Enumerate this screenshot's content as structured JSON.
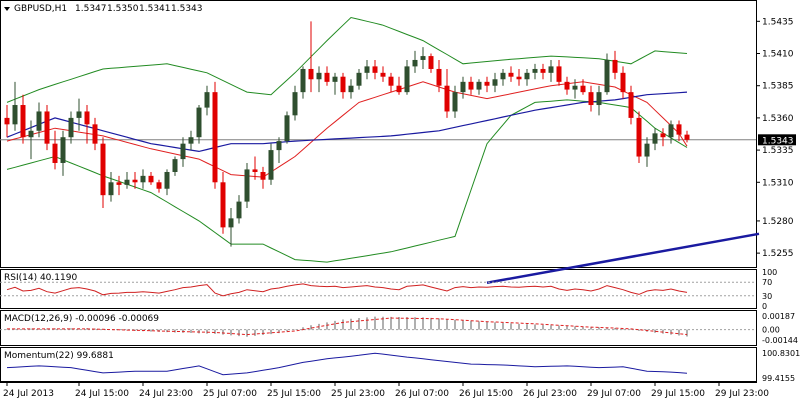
{
  "chart_data": {
    "type": "candlestick",
    "symbol_header": "GBPUSD,H1",
    "ohlc_header": [
      "1.5347",
      "1.5350",
      "1.5341",
      "1.5343"
    ],
    "ohlc": {
      "open": 1.5347,
      "high": 1.535,
      "low": 1.5341,
      "close": 1.5343
    },
    "current_price": 1.5343,
    "current_price_label": "1.5343",
    "price_axis": {
      "range": [
        1.5245,
        1.545
      ],
      "ticks": [
        1.5435,
        1.541,
        1.5385,
        1.536,
        1.5335,
        1.531,
        1.528,
        1.5255
      ],
      "tick_labels": [
        "1.5435",
        "1.5410",
        "1.5385",
        "1.5360",
        "1.5335",
        "1.5310",
        "1.5280",
        "1.5255"
      ]
    },
    "time_axis": {
      "labels": [
        "24 Jul 2013",
        "24 Jul 15:00",
        "24 Jul 23:00",
        "25 Jul 07:00",
        "25 Jul 15:00",
        "25 Jul 23:00",
        "26 Jul 07:00",
        "26 Jul 15:00",
        "26 Jul 23:00",
        "29 Jul 07:00",
        "29 Jul 15:00",
        "29 Jul 23:00"
      ],
      "label_bars": [
        0,
        9,
        17,
        25,
        33,
        41,
        49,
        57,
        65,
        73,
        81,
        89
      ]
    },
    "candles": [
      [
        1.536,
        1.537,
        1.5345,
        1.5355
      ],
      [
        1.5355,
        1.5388,
        1.535,
        1.537
      ],
      [
        1.537,
        1.5378,
        1.534,
        1.5345
      ],
      [
        1.5345,
        1.5358,
        1.5328,
        1.535
      ],
      [
        1.535,
        1.5372,
        1.5345,
        1.5365
      ],
      [
        1.5365,
        1.537,
        1.5335,
        1.534
      ],
      [
        1.534,
        1.535,
        1.532,
        1.5325
      ],
      [
        1.5325,
        1.535,
        1.5315,
        1.5345
      ],
      [
        1.5345,
        1.5365,
        1.534,
        1.536
      ],
      [
        1.536,
        1.5375,
        1.535,
        1.5365
      ],
      [
        1.5365,
        1.537,
        1.534,
        1.5355
      ],
      [
        1.5355,
        1.536,
        1.5335,
        1.534
      ],
      [
        1.534,
        1.5345,
        1.529,
        1.53
      ],
      [
        1.53,
        1.5318,
        1.5295,
        1.531
      ],
      [
        1.531,
        1.5315,
        1.53,
        1.5308
      ],
      [
        1.5308,
        1.5318,
        1.5305,
        1.5312
      ],
      [
        1.5312,
        1.5318,
        1.5305,
        1.531
      ],
      [
        1.531,
        1.532,
        1.5305,
        1.5315
      ],
      [
        1.5315,
        1.5318,
        1.5308,
        1.531
      ],
      [
        1.531,
        1.5312,
        1.5302,
        1.5305
      ],
      [
        1.5305,
        1.532,
        1.53,
        1.5318
      ],
      [
        1.5318,
        1.533,
        1.5315,
        1.5328
      ],
      [
        1.5328,
        1.5345,
        1.5322,
        1.534
      ],
      [
        1.534,
        1.535,
        1.5335,
        1.5345
      ],
      [
        1.5345,
        1.537,
        1.534,
        1.5368
      ],
      [
        1.5368,
        1.5385,
        1.5362,
        1.538
      ],
      [
        1.538,
        1.5388,
        1.5305,
        1.531
      ],
      [
        1.531,
        1.5318,
        1.527,
        1.5275
      ],
      [
        1.5275,
        1.529,
        1.526,
        1.5282
      ],
      [
        1.5282,
        1.53,
        1.5278,
        1.5295
      ],
      [
        1.5295,
        1.5325,
        1.529,
        1.532
      ],
      [
        1.532,
        1.533,
        1.5312,
        1.5318
      ],
      [
        1.5318,
        1.5322,
        1.5305,
        1.5312
      ],
      [
        1.5312,
        1.534,
        1.5308,
        1.5335
      ],
      [
        1.5335,
        1.5345,
        1.5325,
        1.5342
      ],
      [
        1.5342,
        1.5365,
        1.534,
        1.5362
      ],
      [
        1.5362,
        1.5385,
        1.5358,
        1.538
      ],
      [
        1.538,
        1.54,
        1.5375,
        1.5398
      ],
      [
        1.5398,
        1.5435,
        1.538,
        1.539
      ],
      [
        1.539,
        1.54,
        1.538,
        1.5395
      ],
      [
        1.5395,
        1.54,
        1.5385,
        1.5388
      ],
      [
        1.5388,
        1.5395,
        1.5378,
        1.5392
      ],
      [
        1.5392,
        1.5395,
        1.5375,
        1.538
      ],
      [
        1.538,
        1.539,
        1.5375,
        1.5385
      ],
      [
        1.5385,
        1.5398,
        1.5382,
        1.5395
      ],
      [
        1.5395,
        1.5405,
        1.539,
        1.54
      ],
      [
        1.54,
        1.5405,
        1.539,
        1.5395
      ],
      [
        1.5395,
        1.54,
        1.5388,
        1.5392
      ],
      [
        1.5392,
        1.5395,
        1.538,
        1.5385
      ],
      [
        1.5385,
        1.5392,
        1.5378,
        1.538
      ],
      [
        1.538,
        1.5405,
        1.5378,
        1.54
      ],
      [
        1.54,
        1.5412,
        1.5395,
        1.5405
      ],
      [
        1.5405,
        1.5415,
        1.5398,
        1.5408
      ],
      [
        1.5408,
        1.541,
        1.5395,
        1.5398
      ],
      [
        1.5398,
        1.5405,
        1.538,
        1.5385
      ],
      [
        1.5385,
        1.5398,
        1.536,
        1.5365
      ],
      [
        1.5365,
        1.5385,
        1.536,
        1.538
      ],
      [
        1.538,
        1.5392,
        1.5375,
        1.5388
      ],
      [
        1.5388,
        1.5392,
        1.5378,
        1.5382
      ],
      [
        1.5382,
        1.539,
        1.5378,
        1.5388
      ],
      [
        1.5388,
        1.5392,
        1.538,
        1.5385
      ],
      [
        1.5385,
        1.5395,
        1.538,
        1.539
      ],
      [
        1.539,
        1.5398,
        1.5385,
        1.5395
      ],
      [
        1.5395,
        1.54,
        1.5388,
        1.5392
      ],
      [
        1.5392,
        1.5398,
        1.5385,
        1.539
      ],
      [
        1.539,
        1.5398,
        1.5385,
        1.5395
      ],
      [
        1.5395,
        1.5402,
        1.539,
        1.5398
      ],
      [
        1.5398,
        1.5402,
        1.539,
        1.5395
      ],
      [
        1.5395,
        1.5405,
        1.5388,
        1.54
      ],
      [
        1.54,
        1.5405,
        1.5385,
        1.5388
      ],
      [
        1.5388,
        1.5392,
        1.5378,
        1.5382
      ],
      [
        1.5382,
        1.539,
        1.5375,
        1.5385
      ],
      [
        1.5385,
        1.539,
        1.5378,
        1.538
      ],
      [
        1.538,
        1.5385,
        1.5365,
        1.537
      ],
      [
        1.537,
        1.5385,
        1.5362,
        1.538
      ],
      [
        1.538,
        1.541,
        1.5378,
        1.5405
      ],
      [
        1.5405,
        1.5412,
        1.539,
        1.5395
      ],
      [
        1.5395,
        1.54,
        1.5375,
        1.538
      ],
      [
        1.538,
        1.5385,
        1.5355,
        1.536
      ],
      [
        1.536,
        1.5365,
        1.5325,
        1.533
      ],
      [
        1.533,
        1.5345,
        1.5322,
        1.534
      ],
      [
        1.534,
        1.5352,
        1.5335,
        1.5348
      ],
      [
        1.5348,
        1.5352,
        1.5338,
        1.5345
      ],
      [
        1.5345,
        1.5358,
        1.534,
        1.5355
      ],
      [
        1.5355,
        1.5358,
        1.5342,
        1.5347
      ],
      [
        1.5347,
        1.535,
        1.5341,
        1.5343
      ]
    ],
    "bollinger_bands": {
      "upper_anchors": [
        [
          0,
          1.5372
        ],
        [
          4,
          1.5382
        ],
        [
          12,
          1.5398
        ],
        [
          20,
          1.5402
        ],
        [
          25,
          1.5395
        ],
        [
          30,
          1.538
        ],
        [
          33,
          1.5378
        ],
        [
          36,
          1.5395
        ],
        [
          40,
          1.542
        ],
        [
          43,
          1.5438
        ],
        [
          47,
          1.5432
        ],
        [
          52,
          1.542
        ],
        [
          57,
          1.5402
        ],
        [
          62,
          1.5405
        ],
        [
          68,
          1.5408
        ],
        [
          74,
          1.5406
        ],
        [
          78,
          1.5402
        ],
        [
          81,
          1.5412
        ],
        [
          85,
          1.541
        ]
      ],
      "middle_anchors": [
        [
          0,
          1.5342
        ],
        [
          6,
          1.5352
        ],
        [
          12,
          1.5346
        ],
        [
          18,
          1.5336
        ],
        [
          24,
          1.5328
        ],
        [
          28,
          1.5316
        ],
        [
          32,
          1.5314
        ],
        [
          36,
          1.533
        ],
        [
          40,
          1.5352
        ],
        [
          44,
          1.5372
        ],
        [
          48,
          1.538
        ],
        [
          52,
          1.5388
        ],
        [
          56,
          1.538
        ],
        [
          60,
          1.5375
        ],
        [
          64,
          1.538
        ],
        [
          68,
          1.5385
        ],
        [
          72,
          1.5388
        ],
        [
          76,
          1.5384
        ],
        [
          80,
          1.5372
        ],
        [
          84,
          1.5348
        ],
        [
          85,
          1.5338
        ]
      ],
      "lower_anchors": [
        [
          0,
          1.532
        ],
        [
          6,
          1.533
        ],
        [
          12,
          1.5315
        ],
        [
          18,
          1.5302
        ],
        [
          24,
          1.528
        ],
        [
          28,
          1.5262
        ],
        [
          32,
          1.5262
        ],
        [
          36,
          1.525
        ],
        [
          40,
          1.5248
        ],
        [
          44,
          1.5252
        ],
        [
          48,
          1.5256
        ],
        [
          52,
          1.5262
        ],
        [
          56,
          1.5268
        ],
        [
          60,
          1.534
        ],
        [
          63,
          1.5362
        ],
        [
          66,
          1.5372
        ],
        [
          70,
          1.5374
        ],
        [
          74,
          1.5372
        ],
        [
          78,
          1.5368
        ],
        [
          81,
          1.5352
        ],
        [
          85,
          1.5337
        ]
      ]
    },
    "moving_average": {
      "anchors": [
        [
          0,
          1.5345
        ],
        [
          6,
          1.536
        ],
        [
          12,
          1.535
        ],
        [
          18,
          1.534
        ],
        [
          24,
          1.5334
        ],
        [
          28,
          1.534
        ],
        [
          32,
          1.534
        ],
        [
          36,
          1.5342
        ],
        [
          42,
          1.5344
        ],
        [
          48,
          1.5346
        ],
        [
          54,
          1.535
        ],
        [
          60,
          1.5358
        ],
        [
          66,
          1.5366
        ],
        [
          72,
          1.5372
        ],
        [
          76,
          1.5374
        ],
        [
          80,
          1.5378
        ],
        [
          85,
          1.538
        ]
      ]
    },
    "trend_line": {
      "from": [
        60,
        1.5232
      ],
      "to": [
        94,
        1.527
      ]
    },
    "rsi": {
      "label": "RSI(14) 40.1190",
      "range": [
        0,
        100
      ],
      "levels": [
        70,
        30
      ],
      "tick_labels": [
        "100",
        "70",
        "30",
        "0"
      ],
      "values": [
        48,
        55,
        44,
        46,
        52,
        42,
        38,
        45,
        52,
        54,
        50,
        44,
        33,
        37,
        38,
        40,
        40,
        42,
        40,
        38,
        43,
        48,
        54,
        56,
        60,
        63,
        38,
        30,
        36,
        40,
        48,
        45,
        42,
        50,
        53,
        58,
        62,
        65,
        60,
        58,
        57,
        58,
        54,
        56,
        58,
        60,
        56,
        54,
        50,
        48,
        58,
        60,
        62,
        56,
        50,
        44,
        54,
        57,
        54,
        56,
        55,
        57,
        58,
        56,
        55,
        57,
        58,
        56,
        58,
        50,
        46,
        50,
        48,
        44,
        50,
        60,
        54,
        48,
        40,
        34,
        44,
        48,
        46,
        50,
        44,
        40
      ]
    },
    "macd": {
      "label": "MACD(12,26,9) -0.00096 -0.00069",
      "range": [
        -0.002,
        0.0023
      ],
      "tick_labels": [
        "0.00187",
        "0.00",
        "-0.00144"
      ],
      "tick_values": [
        0.00187,
        0.0,
        -0.00144
      ],
      "histogram_anchors": [
        [
          0,
          0.0001
        ],
        [
          10,
          0.0002
        ],
        [
          16,
          -0.0002
        ],
        [
          26,
          -0.0006
        ],
        [
          30,
          -0.001
        ],
        [
          34,
          -0.0005
        ],
        [
          38,
          0.0006
        ],
        [
          42,
          0.0014
        ],
        [
          46,
          0.0018
        ],
        [
          52,
          0.0017
        ],
        [
          58,
          0.0012
        ],
        [
          64,
          0.0008
        ],
        [
          70,
          0.0005
        ],
        [
          76,
          0.0002
        ],
        [
          80,
          -0.0003
        ],
        [
          85,
          -0.00096
        ]
      ],
      "signal_anchors": [
        [
          0,
          0.0001
        ],
        [
          10,
          0.0001
        ],
        [
          16,
          -0.0001
        ],
        [
          26,
          -0.0004
        ],
        [
          30,
          -0.0007
        ],
        [
          36,
          -0.0002
        ],
        [
          42,
          0.001
        ],
        [
          48,
          0.0016
        ],
        [
          54,
          0.0015
        ],
        [
          60,
          0.0011
        ],
        [
          66,
          0.0008
        ],
        [
          72,
          0.0004
        ],
        [
          78,
          0.0001
        ],
        [
          85,
          -0.00069
        ]
      ]
    },
    "momentum": {
      "label": "Momentum(22) 99.6881",
      "range": [
        99.3,
        101.0
      ],
      "tick_labels": [
        "100.8301",
        "99.4155"
      ],
      "tick_values": [
        100.8301,
        99.4155
      ],
      "anchors": [
        [
          0,
          100.0
        ],
        [
          4,
          100.1
        ],
        [
          8,
          100.0
        ],
        [
          12,
          99.7
        ],
        [
          16,
          99.8
        ],
        [
          20,
          99.8
        ],
        [
          24,
          100.1
        ],
        [
          27,
          99.6
        ],
        [
          30,
          99.7
        ],
        [
          34,
          100.0
        ],
        [
          37,
          100.3
        ],
        [
          40,
          100.5
        ],
        [
          44,
          100.7
        ],
        [
          46,
          100.82
        ],
        [
          50,
          100.6
        ],
        [
          54,
          100.4
        ],
        [
          58,
          100.2
        ],
        [
          62,
          100.15
        ],
        [
          66,
          100.05
        ],
        [
          70,
          100.1
        ],
        [
          74,
          100.0
        ],
        [
          77,
          100.05
        ],
        [
          80,
          99.8
        ],
        [
          83,
          99.75
        ],
        [
          85,
          99.6881
        ]
      ]
    },
    "colors": {
      "background": "#ffffff",
      "bull_candle": "#2f4f2f",
      "bear_candle": "#e00000",
      "bollinger_band": "#228b22",
      "bollinger_middle": "#e02020",
      "moving_average": "#1a1aa0",
      "trend_line": "#1a1aa0",
      "price_line": "#808080",
      "rsi_line": "#d02020",
      "macd_histogram": "#606060",
      "macd_signal": "#e02020",
      "momentum_line": "#1a1aa0",
      "price_label_background": "#000000",
      "price_label_text": "#ffffff"
    }
  }
}
